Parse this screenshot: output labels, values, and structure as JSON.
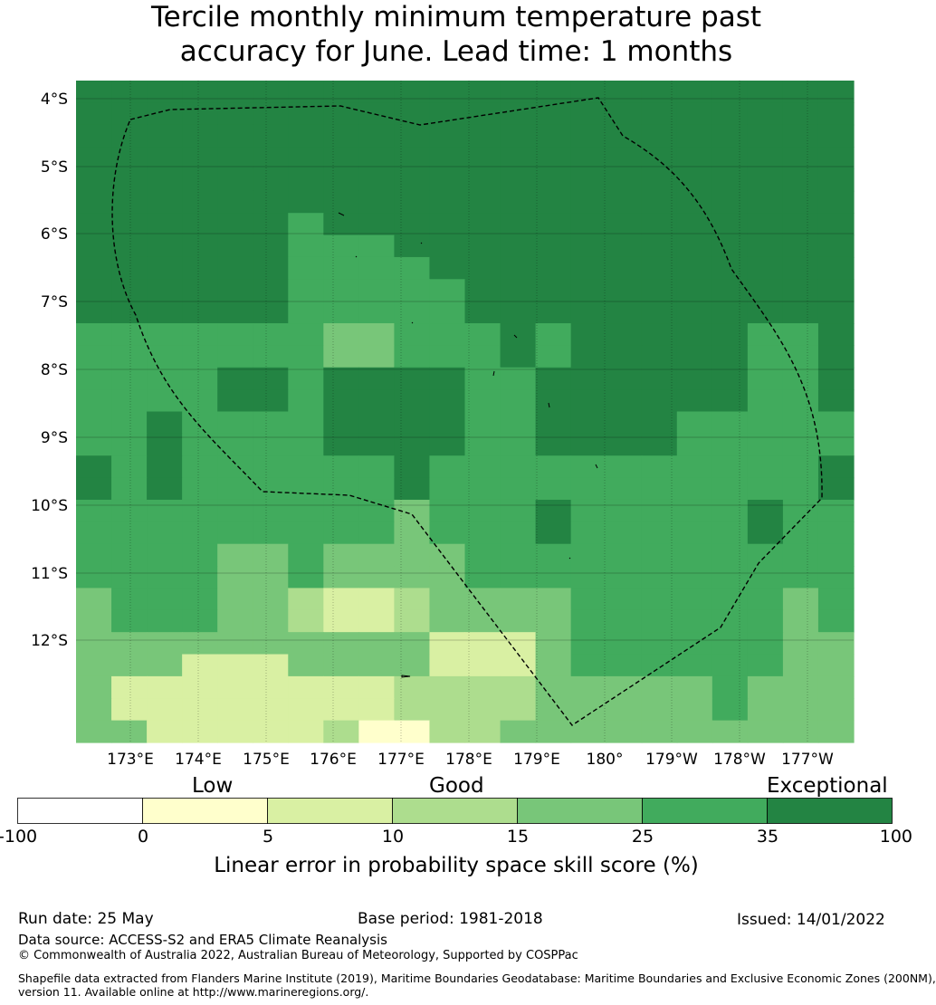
{
  "title": {
    "line1": "Tercile monthly minimum temperature past",
    "line2": "accuracy for June. Lead time: 1 months"
  },
  "map": {
    "lat_labels": [
      "4°S",
      "5°S",
      "6°S",
      "7°S",
      "8°S",
      "9°S",
      "10°S",
      "11°S",
      "12°S"
    ],
    "lon_labels": [
      "173°E",
      "174°E",
      "175°E",
      "176°E",
      "177°E",
      "178°E",
      "179°E",
      "180°",
      "179°W",
      "178°W",
      "177°W"
    ],
    "boundary_style": "dashed",
    "grid": true
  },
  "colorbar": {
    "categories": [
      "Low",
      "Good",
      "Exceptional"
    ],
    "ticks": [
      "-100",
      "0",
      "5",
      "10",
      "15",
      "25",
      "35",
      "100"
    ],
    "colors": [
      "#ffffff",
      "#ffffcc",
      "#d9f0a3",
      "#addd8e",
      "#78c679",
      "#41ab5d",
      "#238443"
    ],
    "label": "Linear error in probability space skill score (%)"
  },
  "footer": {
    "run_date": "Run date: 25 May",
    "base_period": "Base period: 1981-2018",
    "issued": "Issued: 14/01/2022",
    "data_source": "Data source: ACCESS-S2 and ERA5 Climate Reanalysis",
    "copyright": "© Commonwealth of Australia 2022, Australian Bureau of Meteorology, Supported by COSPPac",
    "shapefile_line1": "Shapefile data extracted from Flanders Marine Institute (2019), Maritime Boundaries Geodatabase: Maritime Boundaries and Exclusive Economic Zones (200NM),",
    "shapefile_line2": "version 11. Available online at http://www.marineregions.org/."
  }
}
